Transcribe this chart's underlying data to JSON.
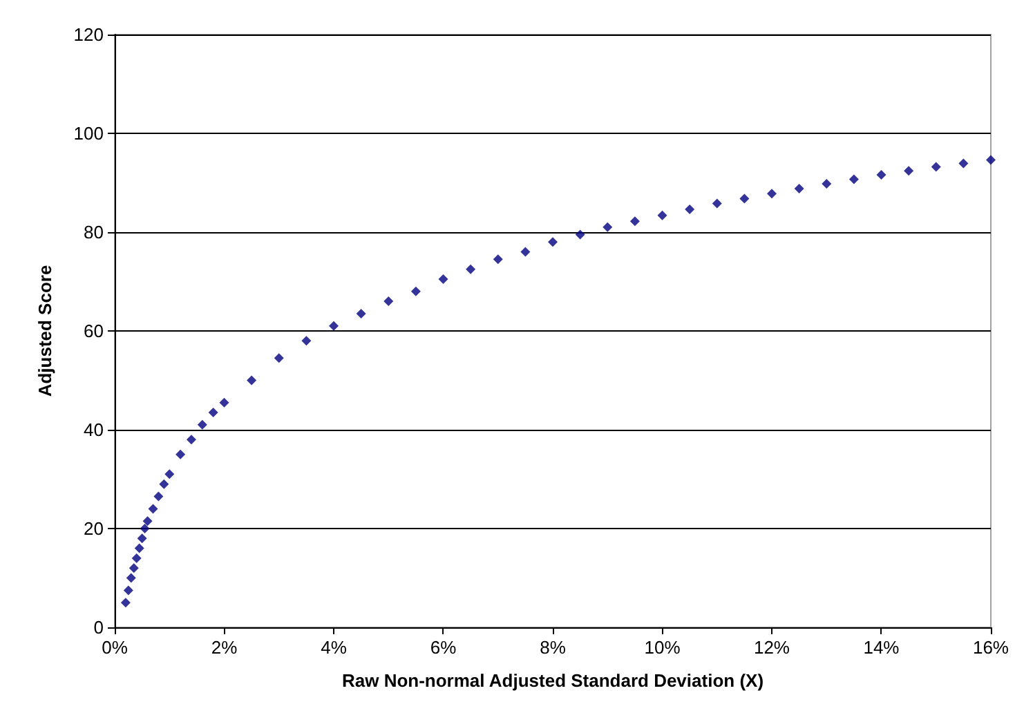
{
  "chart_data": {
    "type": "scatter",
    "xlabel": "Raw Non-normal Adjusted Standard Deviation (X)",
    "ylabel": "Adjusted Score",
    "x": [
      0.2,
      0.25,
      0.3,
      0.35,
      0.4,
      0.45,
      0.5,
      0.55,
      0.6,
      0.7,
      0.8,
      0.9,
      1.0,
      1.2,
      1.4,
      1.6,
      1.8,
      2.0,
      2.5,
      3.0,
      3.5,
      4.0,
      4.5,
      5.0,
      5.5,
      6.0,
      6.5,
      7.0,
      7.5,
      8.0,
      8.5,
      9.0,
      9.5,
      10,
      10.5,
      11,
      11.5,
      12,
      12.5,
      13,
      13.5,
      14,
      14.5,
      15,
      15.5,
      16
    ],
    "series": [
      {
        "color": "#000080",
        "values": [
          5,
          7.5,
          10,
          12,
          14,
          16,
          18,
          20,
          21.5,
          24,
          26.5,
          29,
          31,
          35,
          38,
          41,
          43.5,
          45.5,
          50,
          54.5,
          58,
          61,
          63.5,
          66,
          68,
          70.5,
          72.5,
          74.5,
          76,
          78,
          79.5,
          81,
          82.2,
          83.4,
          84.6,
          85.8,
          86.8,
          87.8,
          88.8,
          89.8,
          90.7,
          91.6,
          92.4,
          93.2,
          93.9,
          94.6
        ]
      }
    ],
    "xlim": [
      0,
      16
    ],
    "xticks": [
      {
        "value": 0,
        "label": "0%"
      },
      {
        "value": 2,
        "label": "2%"
      },
      {
        "value": 4,
        "label": "4%"
      },
      {
        "value": 6,
        "label": "6%"
      },
      {
        "value": 8,
        "label": "8%"
      },
      {
        "value": 10,
        "label": "10%"
      },
      {
        "value": 12,
        "label": "12%"
      },
      {
        "value": 14,
        "label": "14%"
      },
      {
        "value": 16,
        "label": "16%"
      }
    ],
    "ylim": [
      0,
      120
    ],
    "yticks": [
      0,
      20,
      40,
      60,
      80,
      100,
      120
    ],
    "grid": "y",
    "marker": "diamond"
  }
}
